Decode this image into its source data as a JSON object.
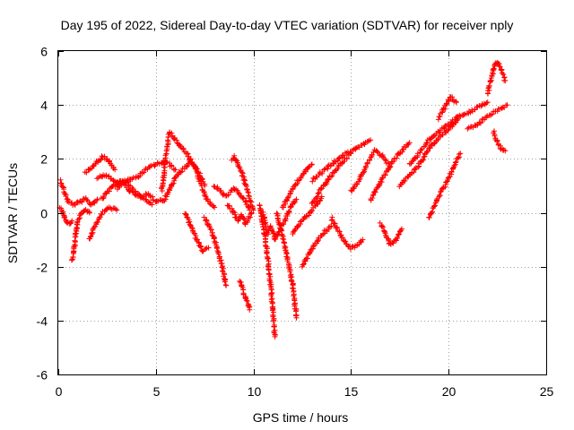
{
  "chart_data": {
    "type": "scatter",
    "title": "Day 195 of 2022, Sidereal Day-to-day VTEC variation (SDTVAR) for receiver nply",
    "xlabel": "GPS time / hours",
    "ylabel": "SDTVAR / TECUs",
    "xlim": [
      0,
      25
    ],
    "ylim": [
      -6,
      6
    ],
    "x_ticks": [
      0,
      5,
      10,
      15,
      20,
      25
    ],
    "y_ticks": [
      -6,
      -4,
      -2,
      0,
      2,
      4,
      6
    ],
    "x_tick_labels": [
      "0",
      "5",
      "10",
      "15",
      "20",
      "25"
    ],
    "y_tick_labels": [
      "-6",
      "-4",
      "-2",
      "0",
      "2",
      "4",
      "6"
    ],
    "grid": true,
    "marker": "plus",
    "color": "#ff0000",
    "series": [
      {
        "name": "SDTVAR",
        "tracks": [
          {
            "x": [
              0.1,
              0.3,
              0.5,
              0.8,
              1.1,
              1.4,
              1.7,
              2.0
            ],
            "y": [
              1.2,
              0.8,
              0.4,
              0.3,
              0.4,
              0.5,
              0.3,
              0.5
            ]
          },
          {
            "x": [
              0.1,
              0.3,
              0.5,
              0.7
            ],
            "y": [
              0.2,
              -0.1,
              -0.4,
              -0.3
            ]
          },
          {
            "x": [
              0.7,
              0.8,
              0.9,
              1.0,
              1.2,
              1.4,
              1.6
            ],
            "y": [
              -1.8,
              -1.4,
              -0.8,
              -0.3,
              0.0,
              0.1,
              0.0
            ]
          },
          {
            "x": [
              1.4,
              1.7,
              2.0,
              2.3,
              2.6,
              2.9
            ],
            "y": [
              1.5,
              1.7,
              1.9,
              2.1,
              1.9,
              1.6
            ]
          },
          {
            "x": [
              2.0,
              2.5,
              3.0,
              3.5,
              4.0,
              4.5,
              5.0,
              5.5,
              6.0
            ],
            "y": [
              1.3,
              1.4,
              1.1,
              1.2,
              1.3,
              1.6,
              1.8,
              1.9,
              1.6
            ]
          },
          {
            "x": [
              1.6,
              1.8,
              2.0,
              2.3,
              2.6,
              3.0
            ],
            "y": [
              -1.0,
              -0.6,
              -0.3,
              0.0,
              0.2,
              0.1
            ]
          },
          {
            "x": [
              2.2,
              2.7,
              3.2,
              3.7,
              4.2,
              4.8
            ],
            "y": [
              0.5,
              0.9,
              1.2,
              0.8,
              0.6,
              0.3
            ]
          },
          {
            "x": [
              3.0,
              3.4,
              3.8,
              4.2,
              4.6,
              5.0,
              5.5
            ],
            "y": [
              0.9,
              1.2,
              0.9,
              0.6,
              0.7,
              0.4,
              0.5
            ]
          },
          {
            "x": [
              5.3,
              5.5,
              5.7,
              6.0,
              6.3,
              6.6,
              6.9,
              7.2,
              7.5
            ],
            "y": [
              0.8,
              2.0,
              3.0,
              2.7,
              2.4,
              2.2,
              1.8,
              1.5,
              1.0
            ]
          },
          {
            "x": [
              5.5,
              5.8,
              6.1,
              6.4,
              6.7,
              7.0,
              7.3,
              7.6,
              8.0
            ],
            "y": [
              0.6,
              1.0,
              1.4,
              1.6,
              1.9,
              1.7,
              1.1,
              0.5,
              0.2
            ]
          },
          {
            "x": [
              6.5,
              6.8,
              7.1,
              7.4,
              7.7
            ],
            "y": [
              0.0,
              -0.5,
              -1.0,
              -1.4,
              -1.3
            ]
          },
          {
            "x": [
              7.5,
              7.8,
              8.0,
              8.2,
              8.4,
              8.6
            ],
            "y": [
              -0.2,
              -0.6,
              -1.0,
              -1.5,
              -2.0,
              -2.7
            ]
          },
          {
            "x": [
              8.0,
              8.3,
              8.6,
              9.0,
              9.3,
              9.6,
              9.8
            ],
            "y": [
              1.0,
              0.8,
              0.6,
              0.9,
              0.7,
              0.4,
              0.1
            ]
          },
          {
            "x": [
              8.7,
              9.0,
              9.2,
              9.4,
              9.6,
              9.9
            ],
            "y": [
              0.3,
              0.0,
              -0.3,
              -0.1,
              -0.4,
              0.0
            ]
          },
          {
            "x": [
              8.9,
              9.0,
              9.2,
              9.4,
              9.6,
              9.8,
              10.0
            ],
            "y": [
              2.0,
              2.1,
              1.8,
              1.5,
              1.0,
              0.5,
              0.1
            ]
          },
          {
            "x": [
              9.3,
              9.5,
              9.7,
              9.8
            ],
            "y": [
              -2.5,
              -3.0,
              -3.3,
              -3.6
            ]
          },
          {
            "x": [
              10.3,
              10.5,
              10.7,
              10.9,
              11.1
            ],
            "y": [
              0.3,
              -0.5,
              -1.5,
              -2.8,
              -4.6
            ]
          },
          {
            "x": [
              10.5,
              10.7,
              10.9,
              11.1,
              11.3,
              11.6,
              11.9,
              12.2
            ],
            "y": [
              0.0,
              -0.8,
              -0.5,
              -1.0,
              -0.7,
              -0.3,
              0.2,
              0.5
            ]
          },
          {
            "x": [
              11.2,
              11.4,
              11.6,
              11.8,
              12.0,
              12.2
            ],
            "y": [
              0.0,
              -0.6,
              -1.2,
              -1.9,
              -2.6,
              -3.9
            ]
          },
          {
            "x": [
              11.5,
              11.8,
              12.1,
              12.4,
              12.7,
              13.0
            ],
            "y": [
              0.2,
              0.6,
              1.0,
              1.3,
              1.6,
              1.8
            ]
          },
          {
            "x": [
              12.0,
              12.3,
              12.6,
              12.9,
              13.2,
              13.5
            ],
            "y": [
              -0.8,
              -0.5,
              -0.2,
              0.0,
              0.3,
              0.6
            ]
          },
          {
            "x": [
              12.5,
              12.8,
              13.1,
              13.5,
              14.0
            ],
            "y": [
              -2.0,
              -1.6,
              -1.2,
              -0.8,
              -0.5
            ]
          },
          {
            "x": [
              13.0,
              13.5,
              14.0,
              14.5,
              15.0,
              15.5,
              16.0
            ],
            "y": [
              1.2,
              1.5,
              1.8,
              2.1,
              2.3,
              2.5,
              2.7
            ]
          },
          {
            "x": [
              13.0,
              13.4,
              13.8,
              14.2,
              14.6,
              15.0
            ],
            "y": [
              0.3,
              0.8,
              1.2,
              1.6,
              1.9,
              2.2
            ]
          },
          {
            "x": [
              14.0,
              14.3,
              14.6,
              15.0,
              15.3,
              15.6
            ],
            "y": [
              -0.2,
              -0.6,
              -1.0,
              -1.3,
              -1.2,
              -1.0
            ]
          },
          {
            "x": [
              15.0,
              15.4,
              15.8,
              16.2,
              16.6,
              17.0
            ],
            "y": [
              0.8,
              1.2,
              1.8,
              2.3,
              2.1,
              1.7
            ]
          },
          {
            "x": [
              16.0,
              16.4,
              16.8,
              17.2,
              17.6,
              18.0
            ],
            "y": [
              0.5,
              1.0,
              1.5,
              2.0,
              2.3,
              2.6
            ]
          },
          {
            "x": [
              16.5,
              16.8,
              17.0,
              17.3,
              17.6
            ],
            "y": [
              -0.4,
              -0.8,
              -1.2,
              -1.0,
              -0.6
            ]
          },
          {
            "x": [
              17.5,
              18.0,
              18.5,
              19.0,
              19.5,
              20.0,
              20.5
            ],
            "y": [
              1.0,
              1.4,
              1.8,
              2.4,
              2.8,
              3.1,
              3.5
            ]
          },
          {
            "x": [
              18.0,
              18.5,
              19.0,
              19.5,
              20.0,
              20.5,
              21.0,
              21.5,
              22.0
            ],
            "y": [
              1.8,
              2.2,
              2.7,
              3.0,
              3.3,
              3.6,
              3.7,
              3.9,
              4.1
            ]
          },
          {
            "x": [
              19.0,
              19.4,
              19.8,
              20.2,
              20.6
            ],
            "y": [
              -0.2,
              0.5,
              1.0,
              1.6,
              2.2
            ]
          },
          {
            "x": [
              19.5,
              19.8,
              20.1,
              20.4
            ],
            "y": [
              3.5,
              3.9,
              4.3,
              4.1
            ]
          },
          {
            "x": [
              21.0,
              21.5,
              22.0,
              22.5,
              23.0
            ],
            "y": [
              3.1,
              3.3,
              3.6,
              3.8,
              4.0
            ]
          },
          {
            "x": [
              22.0,
              22.2,
              22.4,
              22.6,
              22.8,
              22.9
            ],
            "y": [
              4.4,
              5.0,
              5.6,
              5.5,
              5.1,
              4.9
            ]
          },
          {
            "x": [
              22.3,
              22.5,
              22.7,
              22.9
            ],
            "y": [
              3.0,
              2.6,
              2.4,
              2.3
            ]
          }
        ]
      }
    ]
  }
}
